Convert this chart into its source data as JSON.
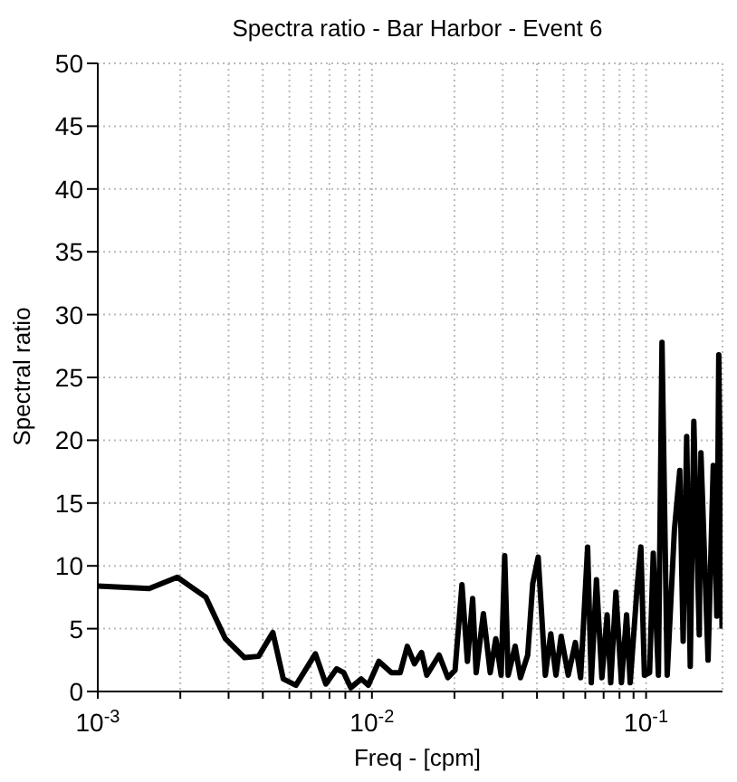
{
  "chart_data": {
    "type": "line",
    "title": "Spectra ratio - Bar Harbor - Event 6",
    "xlabel": "Freq - [cpm]",
    "ylabel": "Spectral ratio",
    "log": "x",
    "grid": true,
    "xlim": [
      0.001,
      0.19
    ],
    "ylim": [
      0,
      50
    ],
    "xticks": [
      {
        "value": 0.001,
        "label": "10$^{-3}$"
      },
      {
        "value": 0.002,
        "label": null
      },
      {
        "value": 0.003,
        "label": null
      },
      {
        "value": 0.004,
        "label": null
      },
      {
        "value": 0.005,
        "label": null
      },
      {
        "value": 0.006,
        "label": null
      },
      {
        "value": 0.007,
        "label": null
      },
      {
        "value": 0.008,
        "label": null
      },
      {
        "value": 0.009,
        "label": null
      },
      {
        "value": 0.01,
        "label": "10$^{-2}$"
      },
      {
        "value": 0.02,
        "label": null
      },
      {
        "value": 0.03,
        "label": null
      },
      {
        "value": 0.04,
        "label": null
      },
      {
        "value": 0.05,
        "label": null
      },
      {
        "value": 0.06,
        "label": null
      },
      {
        "value": 0.07,
        "label": null
      },
      {
        "value": 0.08,
        "label": null
      },
      {
        "value": 0.09,
        "label": null
      },
      {
        "value": 0.1,
        "label": "10$^{-1}$"
      }
    ],
    "yticks": [
      0,
      5,
      10,
      15,
      20,
      25,
      30,
      35,
      40,
      45,
      50
    ],
    "series": [
      {
        "color": "#000000",
        "x": [
          0.001,
          0.00154,
          0.00195,
          0.00248,
          0.00292,
          0.00343,
          0.00386,
          0.00435,
          0.00475,
          0.00528,
          0.00622,
          0.00679,
          0.00743,
          0.00789,
          0.00837,
          0.00914,
          0.0097,
          0.0106,
          0.01178,
          0.01268,
          0.01346,
          0.01429,
          0.01517,
          0.01585,
          0.01758,
          0.01892,
          0.0201,
          0.0213,
          0.0223,
          0.0233,
          0.024,
          0.0255,
          0.027,
          0.0283,
          0.0296,
          0.0305,
          0.0314,
          0.0333,
          0.0348,
          0.037,
          0.0386,
          0.0404,
          0.0429,
          0.0449,
          0.0469,
          0.049,
          0.052,
          0.0552,
          0.0577,
          0.0612,
          0.0631,
          0.0659,
          0.069,
          0.0721,
          0.0743,
          0.0776,
          0.0813,
          0.0849,
          0.0875,
          0.0929,
          0.0957,
          0.0986,
          0.103,
          0.1062,
          0.1109,
          0.1143,
          0.1194,
          0.1268,
          0.1327,
          0.1365,
          0.1406,
          0.1449,
          0.1493,
          0.1563,
          0.1585,
          0.1683,
          0.1758,
          0.1811,
          0.1841,
          0.1893
        ],
        "values": [
          8.4,
          8.2,
          9.1,
          7.5,
          4.2,
          2.7,
          2.8,
          4.7,
          1.0,
          0.5,
          3.0,
          0.6,
          1.8,
          1.5,
          0.3,
          1.0,
          0.5,
          2.4,
          1.5,
          1.5,
          3.6,
          2.2,
          3.1,
          1.3,
          2.9,
          1.1,
          1.7,
          8.5,
          2.4,
          7.4,
          1.5,
          6.2,
          1.5,
          4.2,
          1.3,
          10.8,
          1.3,
          3.6,
          1.1,
          2.9,
          8.6,
          10.7,
          1.3,
          4.6,
          1.3,
          4.4,
          1.3,
          3.9,
          1.1,
          11.5,
          0.7,
          8.9,
          1.1,
          6.1,
          0.7,
          7.9,
          0.7,
          6.1,
          0.7,
          8.5,
          11.5,
          1.3,
          1.5,
          11,
          1.3,
          27.8,
          1.3,
          12.8,
          17.6,
          4,
          20.3,
          2,
          21.5,
          4.5,
          19,
          2.5,
          18,
          6,
          26.8,
          5
        ]
      }
    ]
  }
}
